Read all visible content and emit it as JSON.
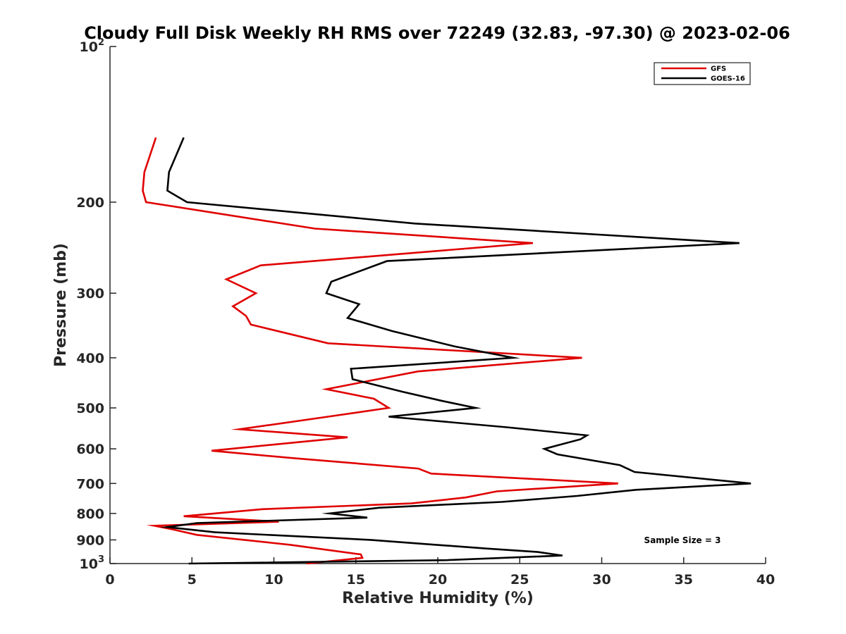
{
  "chart_data": {
    "type": "line",
    "title": "Cloudy Full Disk Weekly RH RMS over 72249 (32.83, -97.30) @ 2023-02-06",
    "xlabel": "Relative Humidity (%)",
    "ylabel": "Pressure (mb)",
    "xlim": [
      0,
      40
    ],
    "ylim": [
      100,
      1000
    ],
    "yscale": "log",
    "y_reversed": true,
    "xticks": [
      0,
      5,
      10,
      15,
      20,
      25,
      30,
      35,
      40
    ],
    "xtick_labels": [
      "0",
      "5",
      "10",
      "15",
      "20",
      "25",
      "30",
      "35",
      "40"
    ],
    "yticks": [
      {
        "value": 100,
        "base": "10",
        "exp": "2"
      },
      {
        "value": 200,
        "label": "200"
      },
      {
        "value": 300,
        "label": "300"
      },
      {
        "value": 400,
        "label": "400"
      },
      {
        "value": 500,
        "label": "500"
      },
      {
        "value": 600,
        "label": "600"
      },
      {
        "value": 700,
        "label": "700"
      },
      {
        "value": 800,
        "label": "800"
      },
      {
        "value": 900,
        "label": "900"
      },
      {
        "value": 1000,
        "base": "10",
        "exp": "3"
      }
    ],
    "legend_position": "top-right",
    "grid": false,
    "annotation": "Sample Size = 3",
    "series": [
      {
        "name": "GFS",
        "color": "#e00000",
        "points": [
          [
            2.8,
            150
          ],
          [
            2.1,
            175
          ],
          [
            2.0,
            190
          ],
          [
            2.2,
            200
          ],
          [
            12.5,
            225
          ],
          [
            25.8,
            240
          ],
          [
            9.2,
            265
          ],
          [
            7.1,
            282
          ],
          [
            8.9,
            300
          ],
          [
            7.5,
            318
          ],
          [
            8.3,
            332
          ],
          [
            8.6,
            345
          ],
          [
            13.3,
            375
          ],
          [
            28.8,
            400
          ],
          [
            18.8,
            425
          ],
          [
            13.2,
            460
          ],
          [
            16.1,
            480
          ],
          [
            17.0,
            500
          ],
          [
            13.3,
            520
          ],
          [
            7.9,
            550
          ],
          [
            14.5,
            570
          ],
          [
            6.2,
            605
          ],
          [
            11.1,
            625
          ],
          [
            18.8,
            655
          ],
          [
            19.6,
            670
          ],
          [
            31.0,
            700
          ],
          [
            23.6,
            725
          ],
          [
            21.7,
            745
          ],
          [
            18.4,
            765
          ],
          [
            9.3,
            785
          ],
          [
            4.5,
            810
          ],
          [
            10.3,
            830
          ],
          [
            2.7,
            845
          ],
          [
            3.9,
            860
          ],
          [
            5.3,
            880
          ],
          [
            11.0,
            920
          ],
          [
            15.3,
            960
          ],
          [
            15.4,
            975
          ],
          [
            12.0,
            1000
          ]
        ]
      },
      {
        "name": "GOES-16",
        "color": "#000000",
        "points": [
          [
            4.5,
            150
          ],
          [
            3.6,
            175
          ],
          [
            3.5,
            190
          ],
          [
            4.7,
            200
          ],
          [
            18.6,
            220
          ],
          [
            38.4,
            240
          ],
          [
            16.9,
            260
          ],
          [
            13.5,
            285
          ],
          [
            13.2,
            300
          ],
          [
            15.2,
            315
          ],
          [
            14.5,
            335
          ],
          [
            17.2,
            355
          ],
          [
            21.0,
            380
          ],
          [
            24.6,
            400
          ],
          [
            14.7,
            420
          ],
          [
            14.8,
            440
          ],
          [
            17.8,
            465
          ],
          [
            20.3,
            485
          ],
          [
            22.3,
            500
          ],
          [
            17.0,
            520
          ],
          [
            24.2,
            545
          ],
          [
            29.1,
            565
          ],
          [
            28.7,
            575
          ],
          [
            26.5,
            600
          ],
          [
            27.3,
            615
          ],
          [
            31.1,
            645
          ],
          [
            32.0,
            665
          ],
          [
            39.1,
            700
          ],
          [
            32.1,
            720
          ],
          [
            28.5,
            740
          ],
          [
            23.9,
            760
          ],
          [
            16.4,
            780
          ],
          [
            13.4,
            800
          ],
          [
            15.7,
            815
          ],
          [
            5.3,
            835
          ],
          [
            3.5,
            850
          ],
          [
            6.4,
            870
          ],
          [
            15.9,
            900
          ],
          [
            19.9,
            920
          ],
          [
            22.9,
            935
          ],
          [
            26.1,
            950
          ],
          [
            27.6,
            965
          ],
          [
            20.5,
            985
          ],
          [
            4.8,
            1000
          ]
        ]
      }
    ]
  }
}
